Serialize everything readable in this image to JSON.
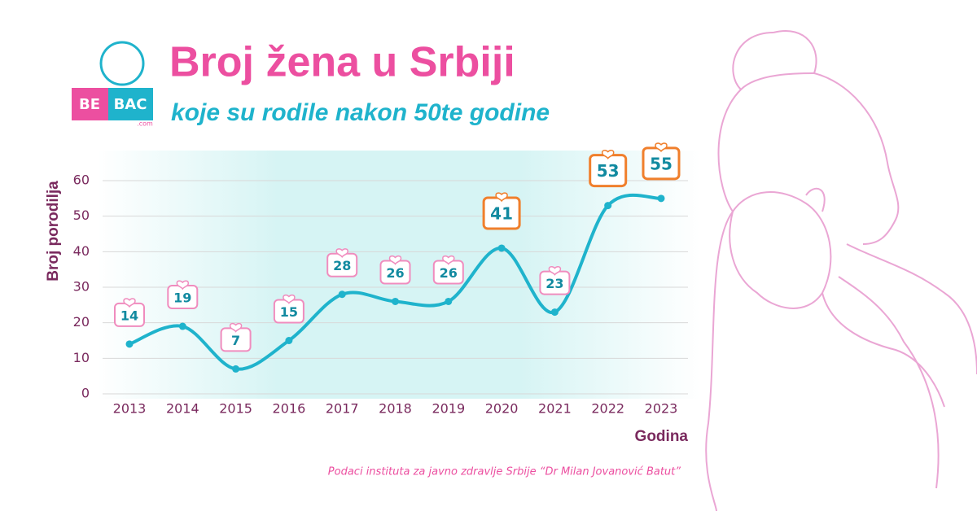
{
  "logo": {
    "left": "BE",
    "right": "BAC",
    "domain": ".com"
  },
  "chart_data": {
    "type": "line",
    "title": "Broj žena u Srbiji",
    "subtitle": "koje su rodile nakon 50te godine",
    "y_label": "Broj porodilja",
    "x_label": "Godina",
    "source": "Podaci instituta za javno zdravlje Srbije “Dr Milan Jovanović Batut”",
    "categories": [
      "2013",
      "2014",
      "2015",
      "2016",
      "2017",
      "2018",
      "2019",
      "2020",
      "2021",
      "2022",
      "2023"
    ],
    "values": [
      14,
      19,
      7,
      15,
      28,
      26,
      26,
      41,
      23,
      53,
      55
    ],
    "color": "#1fb3cc",
    "label_colors": [
      "#f08cbe",
      "#f08cbe",
      "#f08cbe",
      "#f08cbe",
      "#f08cbe",
      "#f08cbe",
      "#f08cbe",
      "#f07f2c",
      "#f08cbe",
      "#f07f2c",
      "#f07f2c"
    ],
    "ylim": [
      0,
      60
    ],
    "yticks": [
      0,
      10,
      20,
      30,
      40,
      50,
      60
    ],
    "grid": true
  }
}
